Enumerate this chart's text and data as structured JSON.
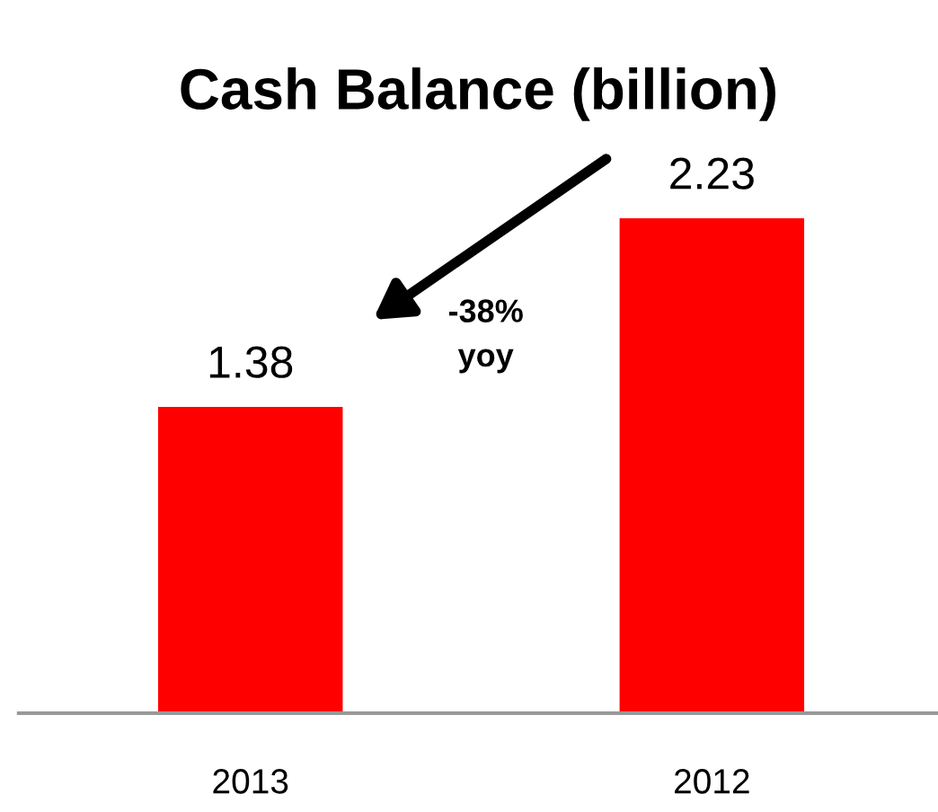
{
  "chart_data": {
    "type": "bar",
    "title": "Cash Balance (billion)",
    "categories": [
      "2013",
      "2012"
    ],
    "values": [
      1.38,
      2.23
    ],
    "color": "#ff0000",
    "data_labels": true,
    "annotations": [
      "-38%\nyoy"
    ],
    "grid": false,
    "legend": false
  }
}
